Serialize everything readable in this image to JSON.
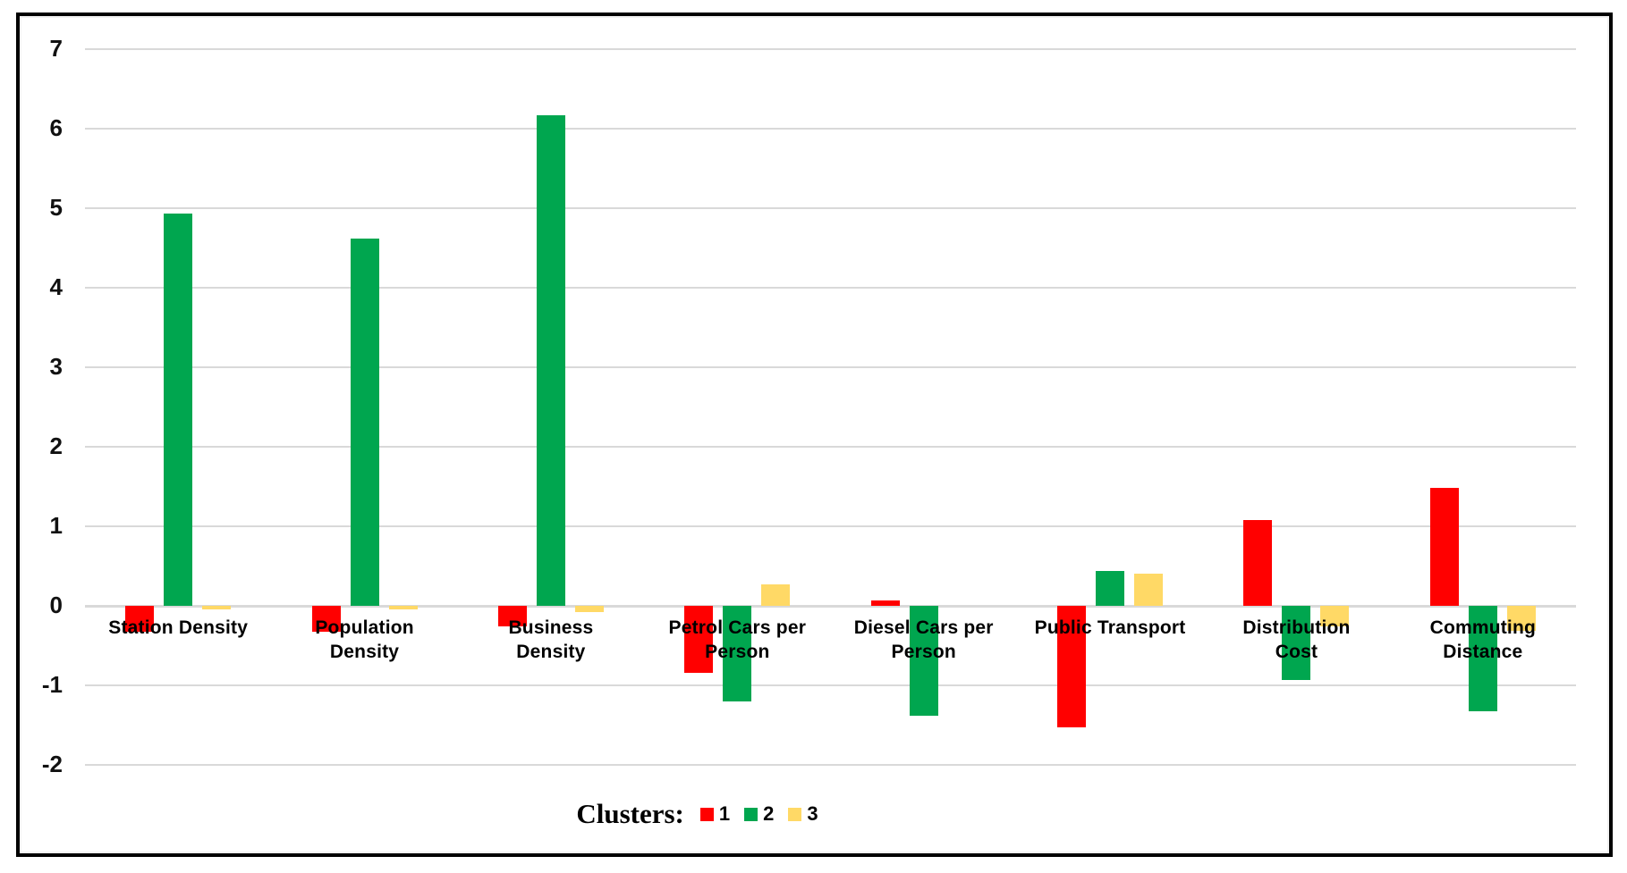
{
  "chart_data": {
    "type": "bar",
    "title": "",
    "xlabel": "",
    "ylabel": "",
    "categories": [
      "Station Density",
      "Population Density",
      "Business Density",
      "Petrol Cars per Person",
      "Diesel Cars per Person",
      "Public Transport",
      "Distribution Cost",
      "Commuting Distance"
    ],
    "category_label_lines": [
      [
        "Station Density"
      ],
      [
        "Population",
        "Density"
      ],
      [
        "Business",
        "Density"
      ],
      [
        "Petrol Cars per",
        "Person"
      ],
      [
        "Diesel Cars per",
        "Person"
      ],
      [
        "Public Transport"
      ],
      [
        "Distribution",
        "Cost"
      ],
      [
        "Commuting",
        "Distance"
      ]
    ],
    "series": [
      {
        "name": "1",
        "color": "#FF0000",
        "values": [
          -0.33,
          -0.33,
          -0.26,
          -0.84,
          0.07,
          -1.53,
          1.08,
          1.48
        ]
      },
      {
        "name": "2",
        "color": "#00A64F",
        "values": [
          4.93,
          4.62,
          6.17,
          -1.2,
          -1.38,
          0.44,
          -0.93,
          -1.33
        ]
      },
      {
        "name": "3",
        "color": "#FFD966",
        "values": [
          -0.05,
          -0.04,
          -0.08,
          0.27,
          0.0,
          0.4,
          -0.26,
          -0.31
        ]
      }
    ],
    "ylim": [
      -2,
      7
    ],
    "yticks": [
      7,
      6,
      5,
      4,
      3,
      2,
      1,
      0,
      -1,
      -2
    ],
    "grid": true,
    "legend_label": "Clusters:",
    "legend_position": "bottom",
    "colors": {
      "gridline": "#D9D9D9",
      "frame_border": "#000000",
      "background": "#FFFFFF",
      "text": "#000000"
    }
  }
}
